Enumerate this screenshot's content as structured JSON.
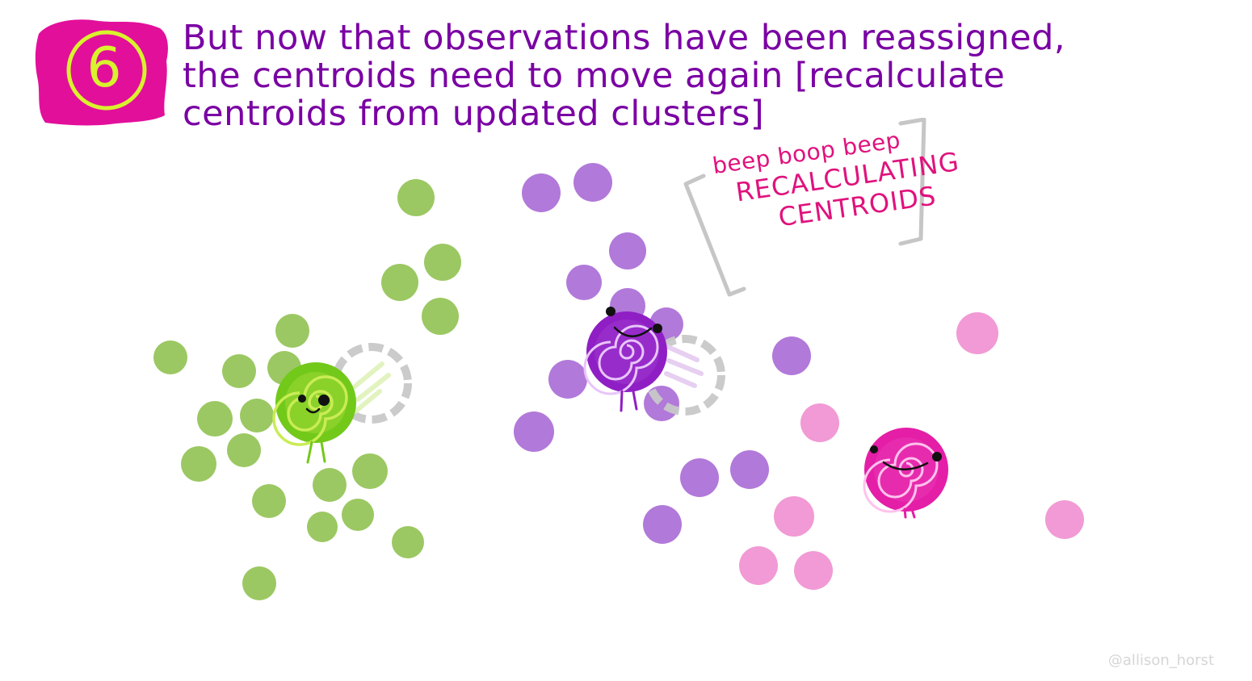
{
  "step": {
    "number": "6",
    "badge_color": "#e20f9b",
    "number_color": "#d8f22d"
  },
  "heading": {
    "lines": [
      "But now that observations have been reassigned,",
      "the centroids need to move again [recalculate",
      "centroids from updated clusters]"
    ],
    "color": "#7a00a3"
  },
  "callout": {
    "line1": "beep boop beep",
    "line2": "RECALCULATING",
    "line3": "CENTROIDS",
    "text_color": "#e0127d",
    "bracket_color": "#c6c6c6"
  },
  "colors": {
    "green": "#9bc862",
    "purple": "#9d57cf",
    "pink": "#f19ad5",
    "green_centroid": "#72c91a",
    "purple_centroid": "#8f1fc4",
    "pink_centroid": "#e41ea7",
    "ghost_ring": "#c8c8c8"
  },
  "icons": {
    "step": "circled-number-icon",
    "centroid": "spiral-face-icon",
    "previous_position": "dashed-ring-icon"
  },
  "credit": "@allison_horst"
}
